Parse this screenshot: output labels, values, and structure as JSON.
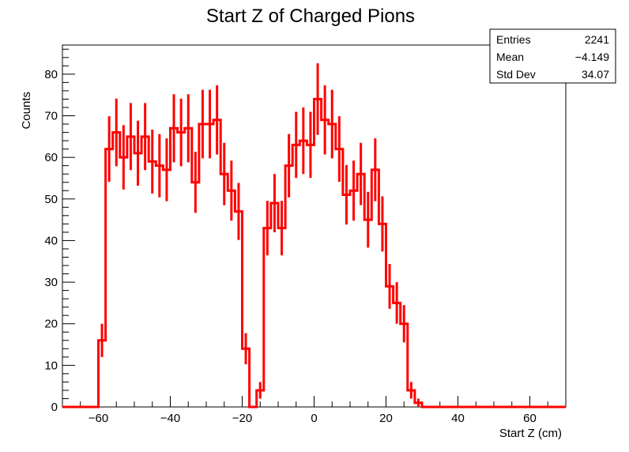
{
  "chart_data": {
    "type": "bar",
    "title": "Start Z of Charged Pions",
    "xlabel": "Start Z (cm)",
    "ylabel": "Counts",
    "xlim": [
      -70,
      70
    ],
    "ylim": [
      0,
      87
    ],
    "bin_width": 2,
    "x_ticks": [
      -60,
      -40,
      -20,
      0,
      20,
      40,
      60
    ],
    "x_tick_labels": [
      "−60",
      "−40",
      "−20",
      "0",
      "20",
      "40",
      "60"
    ],
    "y_ticks": [
      0,
      10,
      20,
      30,
      40,
      50,
      60,
      70,
      80
    ],
    "y_tick_labels": [
      "0",
      "10",
      "20",
      "30",
      "40",
      "50",
      "60",
      "70",
      "80"
    ],
    "series": [
      {
        "color": "#ff0000",
        "bin_edges_start": -70,
        "values": [
          0,
          0,
          0,
          0,
          0,
          16,
          62,
          66,
          60,
          65,
          61,
          65,
          59,
          58,
          57,
          67,
          66,
          67,
          54,
          68,
          68,
          69,
          56,
          52,
          47,
          14,
          0,
          4,
          43,
          49,
          43,
          58,
          63,
          64,
          63,
          74,
          69,
          68,
          62,
          51,
          52,
          56,
          45,
          57,
          44,
          29,
          25,
          20,
          4,
          1,
          0,
          0,
          0,
          0,
          0,
          0,
          0,
          0,
          0,
          0,
          0,
          0,
          0,
          0,
          0,
          0,
          0,
          0,
          0,
          0
        ]
      }
    ],
    "stats": {
      "rows": [
        {
          "label": "Entries",
          "value": "2241"
        },
        {
          "label": "Mean",
          "value": "−4.149"
        },
        {
          "label": "Std Dev",
          "value": "34.07"
        }
      ]
    }
  }
}
